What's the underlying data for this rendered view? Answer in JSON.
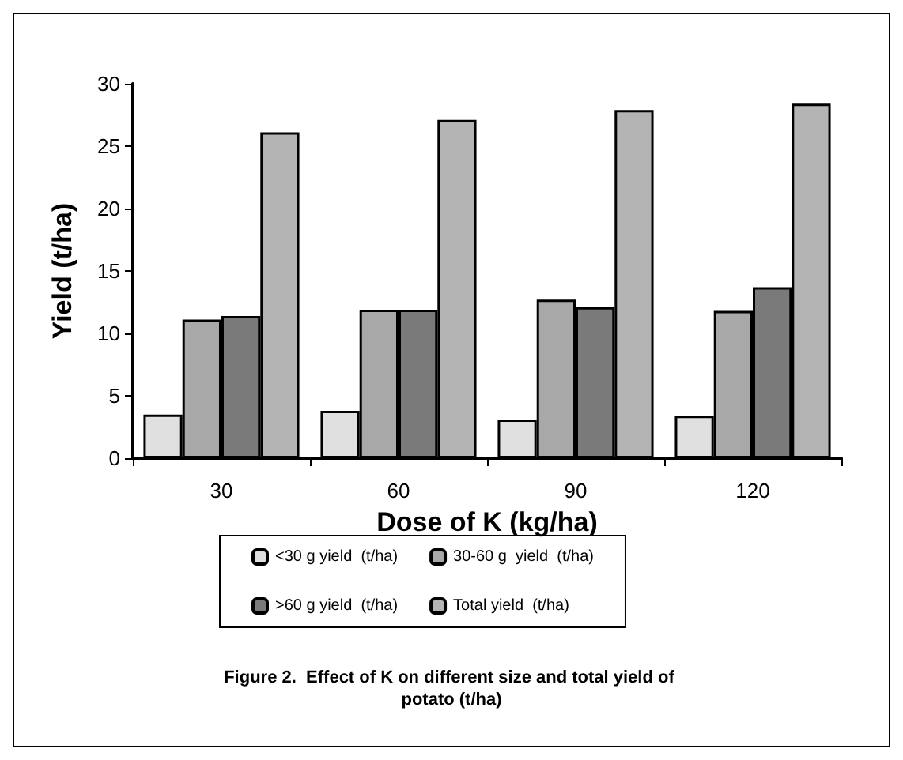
{
  "chart_data": {
    "type": "bar",
    "title": "Figure 2.  Effect of K on different size and total yield of potato (t/ha)",
    "xlabel": "Dose of K (kg/ha)",
    "ylabel": "Yield (t/ha)",
    "categories": [
      "30",
      "60",
      "90",
      "120"
    ],
    "series": [
      {
        "name": "<30 g yield  (t/ha)",
        "color": "#e0e0e0",
        "values": [
          3.5,
          3.8,
          3.1,
          3.4
        ]
      },
      {
        "name": "30-60 g  yield  (t/ha)",
        "color": "#a8a8a8",
        "values": [
          11.1,
          11.9,
          12.7,
          11.8
        ]
      },
      {
        "name": ">60 g yield  (t/ha)",
        "color": "#7a7a7a",
        "values": [
          11.4,
          11.9,
          12.1,
          13.7
        ]
      },
      {
        "name": "Total yield  (t/ha)",
        "color": "#b4b4b4",
        "values": [
          26.1,
          27.1,
          27.9,
          28.4
        ]
      }
    ],
    "ylim": [
      0,
      30
    ],
    "yticks": [
      0,
      5,
      10,
      15,
      20,
      25,
      30
    ],
    "grid": false,
    "legend": "bottom"
  }
}
